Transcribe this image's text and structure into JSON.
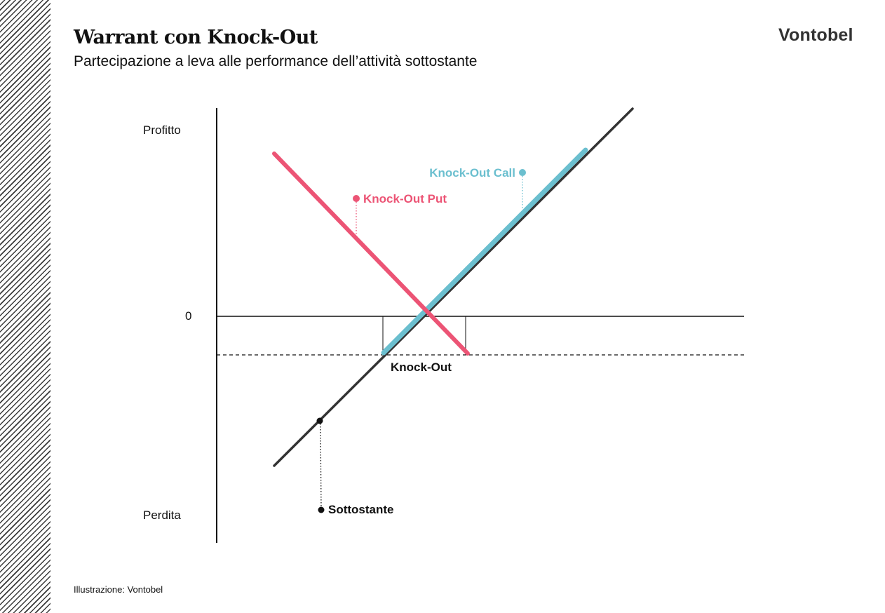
{
  "header": {
    "title": "Warrant con Knock-Out",
    "subtitle": "Partecipazione a leva alle performance dell’attività sottostante",
    "logo": "Vontobel"
  },
  "footer": {
    "credit": "Illustrazione: Vontobel"
  },
  "diagram": {
    "axis_labels": {
      "top": "Profitto",
      "zero": "0",
      "bottom": "Perdita"
    },
    "lines": {
      "underlying": {
        "label": "Sottostante",
        "color": "#333333"
      },
      "call": {
        "label": "Knock-Out Call",
        "color": "#6bbfcf"
      },
      "put": {
        "label": "Knock-Out Put",
        "color": "#ec5475"
      }
    },
    "knockout_label": "Knock-Out"
  }
}
